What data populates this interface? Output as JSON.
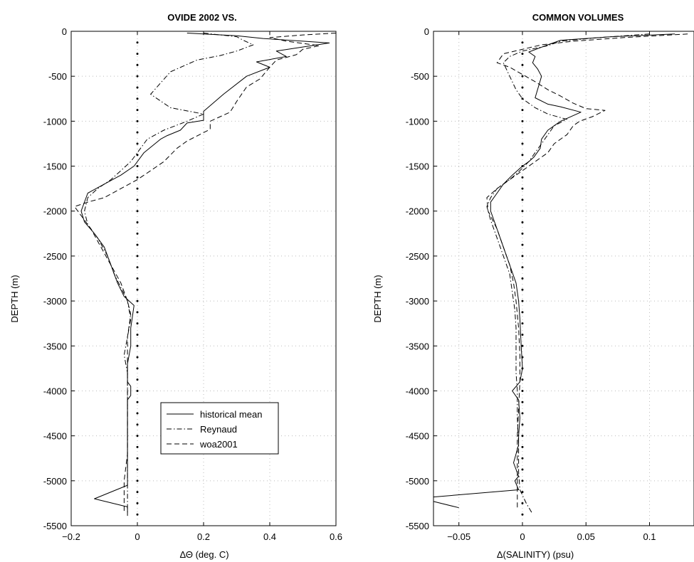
{
  "chart_data": [
    {
      "type": "line",
      "title": "OVIDE 2002 VS.",
      "xlabel": "ΔΘ (deg. C)",
      "ylabel": "DEPTH (m)",
      "xlim": [
        -0.2,
        0.6
      ],
      "ylim": [
        -5500,
        0
      ],
      "xticks": [
        -0.2,
        0,
        0.2,
        0.4,
        0.6
      ],
      "xtick_labels": [
        "−0.2",
        "0",
        "0.2",
        "0.4",
        "0.6"
      ],
      "yticks": [
        0,
        -500,
        -1000,
        -1500,
        -2000,
        -2500,
        -3000,
        -3500,
        -4000,
        -4500,
        -5000,
        -5500
      ],
      "ytick_labels": [
        "0",
        "-500",
        "-1000",
        "-1500",
        "-2000",
        "-2500",
        "-3000",
        "-3500",
        "-4000",
        "-4500",
        "-5000",
        "-5500"
      ],
      "grid": true,
      "legend": {
        "placement": "lower-center"
      },
      "series": [
        {
          "name": "historical mean",
          "style": "solid",
          "x": [
            0.15,
            0.3,
            0.38,
            0.58,
            0.42,
            0.45,
            0.36,
            0.4,
            0.33,
            0.26,
            0.2,
            0.2,
            0.15,
            0.13,
            0.09,
            0.07,
            0.02,
            -0.01,
            -0.05,
            -0.1,
            -0.15,
            -0.17,
            -0.16,
            -0.13,
            -0.1,
            -0.08,
            -0.06,
            -0.04,
            -0.01,
            -0.02,
            -0.02,
            -0.03,
            -0.03,
            -0.02,
            -0.02,
            -0.03,
            -0.03,
            -0.03,
            -0.03,
            -0.03,
            -0.13,
            -0.03,
            -0.03
          ],
          "y": [
            -20,
            -50,
            -80,
            -130,
            -220,
            -280,
            -340,
            -400,
            -500,
            -700,
            -890,
            -990,
            -1020,
            -1100,
            -1160,
            -1200,
            -1350,
            -1500,
            -1600,
            -1700,
            -1800,
            -2000,
            -2120,
            -2250,
            -2400,
            -2600,
            -2800,
            -2950,
            -3050,
            -3300,
            -3500,
            -3700,
            -3900,
            -3950,
            -4050,
            -4100,
            -4300,
            -4500,
            -4800,
            -5050,
            -5200,
            -5290,
            -5390
          ]
        },
        {
          "name": "Reynaud",
          "style": "dash-dot",
          "x": [
            0.2,
            0.3,
            0.32,
            0.35,
            0.3,
            0.25,
            0.18,
            0.1,
            0.04,
            0.1,
            0.2,
            0.15,
            0.08,
            0.03,
            0.0,
            -0.02,
            -0.05,
            -0.08,
            -0.12,
            -0.15,
            -0.16,
            -0.15,
            -0.12,
            -0.09,
            -0.07,
            -0.05,
            -0.03,
            -0.02,
            -0.03,
            -0.04,
            -0.03,
            -0.03,
            -0.03,
            -0.03,
            -0.03,
            -0.03,
            -0.03
          ],
          "y": [
            -20,
            -60,
            -100,
            -150,
            -220,
            -270,
            -320,
            -450,
            -700,
            -850,
            -920,
            -1000,
            -1100,
            -1200,
            -1350,
            -1450,
            -1550,
            -1650,
            -1750,
            -1850,
            -2000,
            -2150,
            -2300,
            -2500,
            -2700,
            -2850,
            -3000,
            -3200,
            -3400,
            -3600,
            -3800,
            -4000,
            -4300,
            -4600,
            -4900,
            -5100,
            -5350
          ]
        },
        {
          "name": "woa2001",
          "style": "dashed",
          "x": [
            0.6,
            0.5,
            0.4,
            0.45,
            0.55,
            0.5,
            0.48,
            0.42,
            0.4,
            0.37,
            0.33,
            0.3,
            0.28,
            0.22,
            0.22,
            0.15,
            0.12,
            0.08,
            0.04,
            0.0,
            -0.05,
            -0.1,
            -0.15,
            -0.19,
            -0.18,
            -0.14,
            -0.11,
            -0.08,
            -0.05,
            -0.03,
            -0.02,
            -0.03,
            -0.03,
            -0.03,
            -0.03,
            -0.03,
            -0.04,
            -0.04
          ],
          "y": [
            -20,
            -40,
            -70,
            -110,
            -160,
            -200,
            -260,
            -320,
            -400,
            -530,
            -620,
            -780,
            -900,
            -1000,
            -1090,
            -1220,
            -1300,
            -1450,
            -1550,
            -1650,
            -1750,
            -1850,
            -1900,
            -1950,
            -2000,
            -2200,
            -2400,
            -2600,
            -2800,
            -3000,
            -3150,
            -3400,
            -3700,
            -4000,
            -4300,
            -4700,
            -5000,
            -5350
          ]
        }
      ]
    },
    {
      "type": "line",
      "title": "COMMON VOLUMES",
      "xlabel": "Δ(SALINITY) (psu)",
      "ylabel": "DEPTH (m)",
      "xlim": [
        -0.07,
        0.135
      ],
      "ylim": [
        -5500,
        0
      ],
      "xticks": [
        -0.05,
        0,
        0.05,
        0.1
      ],
      "xtick_labels": [
        "−0.05",
        "0",
        "0.05",
        "0.1"
      ],
      "yticks": [
        0,
        -500,
        -1000,
        -1500,
        -2000,
        -2500,
        -3000,
        -3500,
        -4000,
        -4500,
        -5000,
        -5500
      ],
      "ytick_labels": [
        "0",
        "-500",
        "-1000",
        "-1500",
        "-2000",
        "-2500",
        "-3000",
        "-3500",
        "-4000",
        "-4500",
        "-5000",
        "-5500"
      ],
      "grid": true,
      "series": [
        {
          "name": "historical mean",
          "style": "solid",
          "x": [
            0.12,
            0.07,
            0.03,
            0.02,
            0.005,
            0.01,
            0.008,
            0.012,
            0.015,
            0.01,
            0.02,
            0.03,
            0.046,
            0.03,
            0.025,
            0.02,
            0.015,
            0.014,
            0.009,
            0.005,
            0.0,
            -0.008,
            -0.015,
            -0.02,
            -0.025,
            -0.025,
            -0.02,
            -0.015,
            -0.01,
            -0.005,
            -0.003,
            -0.002,
            -0.001,
            0.0,
            -0.002,
            -0.008,
            -0.003,
            -0.002,
            -0.003,
            -0.003,
            -0.007,
            -0.003,
            -0.006,
            -0.003,
            -0.07,
            -0.07,
            -0.05
          ],
          "y": [
            -30,
            -60,
            -100,
            -150,
            -230,
            -280,
            -350,
            -420,
            -500,
            -740,
            -810,
            -840,
            -900,
            -1000,
            -1050,
            -1100,
            -1200,
            -1300,
            -1400,
            -1450,
            -1500,
            -1600,
            -1700,
            -1800,
            -1900,
            -2000,
            -2200,
            -2400,
            -2600,
            -2800,
            -3000,
            -3200,
            -3500,
            -3750,
            -3900,
            -4000,
            -4100,
            -4300,
            -4500,
            -4600,
            -4800,
            -4950,
            -5000,
            -5100,
            -5180,
            -5230,
            -5300
          ]
        },
        {
          "name": "Reynaud",
          "style": "dash-dot",
          "x": [
            0.1,
            0.06,
            0.03,
            0.02,
            0.0,
            -0.01,
            -0.015,
            -0.01,
            -0.005,
            0.0,
            0.01,
            0.02,
            0.035,
            0.025,
            0.02,
            0.015,
            0.01,
            0.005,
            -0.002,
            -0.01,
            -0.02,
            -0.025,
            -0.028,
            -0.025,
            -0.02,
            -0.015,
            -0.01,
            -0.008,
            -0.006,
            -0.005,
            -0.005,
            -0.005,
            -0.004,
            -0.004,
            -0.003,
            -0.003,
            -0.002,
            0.003,
            0.008
          ],
          "y": [
            -30,
            -70,
            -110,
            -160,
            -220,
            -280,
            -350,
            -500,
            -650,
            -750,
            -850,
            -920,
            -980,
            -1050,
            -1150,
            -1250,
            -1350,
            -1450,
            -1550,
            -1650,
            -1750,
            -1850,
            -1950,
            -2100,
            -2300,
            -2500,
            -2700,
            -2900,
            -3100,
            -3300,
            -3500,
            -3800,
            -4000,
            -4300,
            -4600,
            -4900,
            -5100,
            -5250,
            -5370
          ]
        },
        {
          "name": "woa2001",
          "style": "dashed",
          "x": [
            0.13,
            0.08,
            0.04,
            0.015,
            -0.015,
            -0.02,
            -0.01,
            0.0,
            0.01,
            0.02,
            0.03,
            0.04,
            0.05,
            0.065,
            0.055,
            0.045,
            0.04,
            0.035,
            0.03,
            0.025,
            0.02,
            0.01,
            0.0,
            -0.01,
            -0.02,
            -0.028,
            -0.027,
            -0.02,
            -0.015,
            -0.01,
            -0.007,
            -0.005,
            -0.003,
            -0.002,
            -0.002,
            -0.003,
            -0.004,
            -0.004,
            -0.004,
            -0.004
          ],
          "y": [
            -30,
            -70,
            -110,
            -150,
            -250,
            -350,
            -400,
            -480,
            -560,
            -650,
            -720,
            -800,
            -860,
            -880,
            -950,
            -1000,
            -1050,
            -1150,
            -1200,
            -1250,
            -1350,
            -1450,
            -1550,
            -1650,
            -1750,
            -1850,
            -2000,
            -2200,
            -2400,
            -2600,
            -2800,
            -3000,
            -3300,
            -3600,
            -3900,
            -4200,
            -4500,
            -4800,
            -5100,
            -5300
          ]
        }
      ]
    }
  ]
}
